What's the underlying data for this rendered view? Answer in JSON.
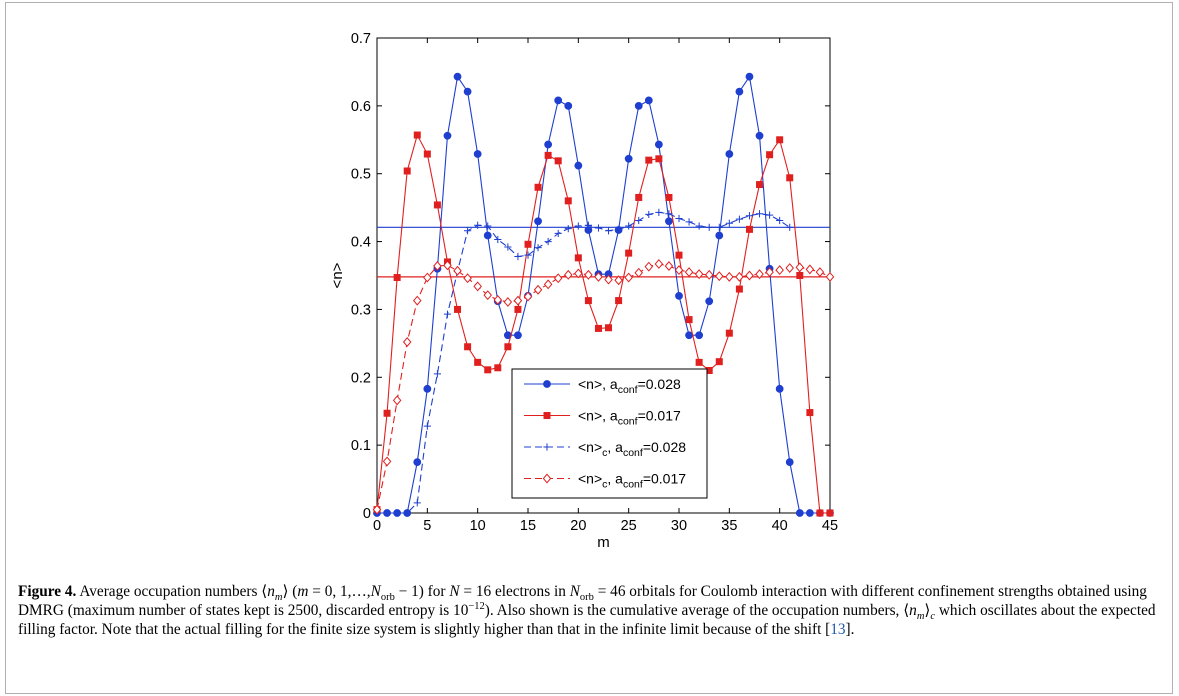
{
  "chart_data": {
    "type": "line",
    "xlabel": "m",
    "ylabel": "<n>",
    "xlim": [
      0,
      45
    ],
    "ylim": [
      0,
      0.7
    ],
    "xticks": [
      "0",
      "5",
      "10",
      "15",
      "20",
      "25",
      "30",
      "35",
      "40",
      "45"
    ],
    "yticks": [
      "0",
      "0.1",
      "0.2",
      "0.3",
      "0.4",
      "0.5",
      "0.6",
      "0.7"
    ],
    "legend_position": "lower-center",
    "horizontal_lines": [
      {
        "y": 0.421,
        "color": "#1e3fcf"
      },
      {
        "y": 0.348,
        "color": "#e0201f"
      }
    ],
    "series": [
      {
        "name": "<n>, a_conf=0.028",
        "legend_main": "<n>, a",
        "legend_sub": "conf",
        "legend_tail": "=0.028",
        "color": "#1e3fcf",
        "dash": "solid",
        "marker": "circle",
        "x": [
          0,
          1,
          2,
          3,
          4,
          5,
          6,
          7,
          8,
          9,
          10,
          11,
          12,
          13,
          14,
          15,
          16,
          17,
          18,
          19,
          20,
          21,
          22,
          23,
          24,
          25,
          26,
          27,
          28,
          29,
          30,
          31,
          32,
          33,
          34,
          35,
          36,
          37,
          38,
          39,
          40,
          41,
          42,
          43,
          44,
          45
        ],
        "values": [
          0,
          0,
          0,
          0,
          0.075,
          0.183,
          0.36,
          0.556,
          0.643,
          0.621,
          0.529,
          0.409,
          0.312,
          0.262,
          0.262,
          0.32,
          0.43,
          0.543,
          0.608,
          0.6,
          0.512,
          0.417,
          0.352,
          0.352,
          0.417,
          0.522,
          0.6,
          0.608,
          0.543,
          0.43,
          0.32,
          0.262,
          0.262,
          0.312,
          0.409,
          0.529,
          0.621,
          0.643,
          0.556,
          0.36,
          0.183,
          0.075,
          0,
          0,
          0,
          0
        ]
      },
      {
        "name": "<n>, a_conf=0.017",
        "legend_main": "<n>, a",
        "legend_sub": "conf",
        "legend_tail": "=0.017",
        "color": "#e0201f",
        "dash": "solid",
        "marker": "square",
        "x": [
          0,
          1,
          2,
          3,
          4,
          5,
          6,
          7,
          8,
          9,
          10,
          11,
          12,
          13,
          14,
          15,
          16,
          17,
          18,
          19,
          20,
          21,
          22,
          23,
          24,
          25,
          26,
          27,
          28,
          29,
          30,
          31,
          32,
          33,
          34,
          35,
          36,
          37,
          38,
          39,
          40,
          41,
          42,
          43,
          44,
          45
        ],
        "values": [
          0.005,
          0.147,
          0.347,
          0.504,
          0.557,
          0.529,
          0.454,
          0.37,
          0.3,
          0.245,
          0.222,
          0.211,
          0.214,
          0.245,
          0.3,
          0.396,
          0.48,
          0.527,
          0.519,
          0.46,
          0.376,
          0.313,
          0.272,
          0.273,
          0.313,
          0.383,
          0.465,
          0.52,
          0.522,
          0.465,
          0.38,
          0.285,
          0.222,
          0.21,
          0.223,
          0.265,
          0.33,
          0.418,
          0.484,
          0.528,
          0.55,
          0.494,
          0.35,
          0.148,
          0,
          0
        ]
      },
      {
        "name": "<n>_c, a_conf=0.028",
        "legend_main": "<n>",
        "legend_sub": "c",
        "legend_mid": ", a",
        "legend_sub2": "conf",
        "legend_tail": "=0.028",
        "color": "#1e3fcf",
        "dash": "dashed",
        "marker": "plus",
        "x": [
          0,
          1,
          2,
          3,
          4,
          5,
          6,
          7,
          8,
          9,
          10,
          11,
          12,
          13,
          14,
          15,
          16,
          17,
          18,
          19,
          20,
          21,
          22,
          23,
          24,
          25,
          26,
          27,
          28,
          29,
          30,
          31,
          32,
          33,
          34,
          35,
          36,
          37,
          38,
          39,
          40,
          41
        ],
        "values": [
          0,
          0,
          0,
          0,
          0.015,
          0.128,
          0.205,
          0.293,
          0.356,
          0.416,
          0.424,
          0.423,
          0.403,
          0.392,
          0.378,
          0.38,
          0.391,
          0.4,
          0.412,
          0.419,
          0.423,
          0.424,
          0.42,
          0.416,
          0.418,
          0.423,
          0.431,
          0.44,
          0.443,
          0.441,
          0.434,
          0.429,
          0.423,
          0.421,
          0.421,
          0.427,
          0.433,
          0.438,
          0.441,
          0.439,
          0.431,
          0.421
        ]
      },
      {
        "name": "<n>_c, a_conf=0.017",
        "legend_main": "<n>",
        "legend_sub": "c",
        "legend_mid": ", a",
        "legend_sub2": "conf",
        "legend_tail": "=0.017",
        "color": "#e0201f",
        "dash": "dashed",
        "marker": "diamond",
        "x": [
          0,
          1,
          2,
          3,
          4,
          5,
          6,
          7,
          8,
          9,
          10,
          11,
          12,
          13,
          14,
          15,
          16,
          17,
          18,
          19,
          20,
          21,
          22,
          23,
          24,
          25,
          26,
          27,
          28,
          29,
          30,
          31,
          32,
          33,
          34,
          35,
          36,
          37,
          38,
          39,
          40,
          41,
          42,
          43,
          44,
          45
        ],
        "values": [
          0.005,
          0.076,
          0.166,
          0.252,
          0.313,
          0.347,
          0.364,
          0.365,
          0.357,
          0.346,
          0.334,
          0.321,
          0.314,
          0.311,
          0.313,
          0.319,
          0.329,
          0.337,
          0.346,
          0.351,
          0.353,
          0.351,
          0.348,
          0.344,
          0.343,
          0.347,
          0.354,
          0.363,
          0.367,
          0.364,
          0.358,
          0.355,
          0.352,
          0.351,
          0.349,
          0.348,
          0.348,
          0.35,
          0.352,
          0.355,
          0.358,
          0.361,
          0.362,
          0.359,
          0.355,
          0.348
        ]
      }
    ]
  },
  "caption": {
    "label": "Figure 4.",
    "parts": [
      {
        "t": " Average occupation numbers ⟨",
        "i": false
      },
      {
        "t": "n",
        "i": true
      },
      {
        "t": "m",
        "i": true,
        "sub": true
      },
      {
        "t": "⟩ (",
        "i": false
      },
      {
        "t": "m",
        "i": true
      },
      {
        "t": " = 0, 1,…,",
        "i": false
      },
      {
        "t": "N",
        "i": true
      },
      {
        "t": "orb",
        "i": false,
        "sub": true
      },
      {
        "t": " − 1) for ",
        "i": false
      },
      {
        "t": "N",
        "i": true
      },
      {
        "t": " = 16 electrons in ",
        "i": false
      },
      {
        "t": "N",
        "i": true
      },
      {
        "t": "orb",
        "i": false,
        "sub": true
      },
      {
        "t": " = 46 orbitals for Coulomb interaction with different confinement strengths obtained using DMRG (maximum number of states kept is 2500, discarded entropy is 10",
        "i": false
      },
      {
        "t": "−12",
        "i": false,
        "sup": true
      },
      {
        "t": "). Also shown is the cumulative average of the occupation numbers, ⟨",
        "i": false
      },
      {
        "t": "n",
        "i": true
      },
      {
        "t": "m",
        "i": true,
        "sub": true
      },
      {
        "t": "⟩",
        "i": false
      },
      {
        "t": "c",
        "i": true,
        "sub": true
      },
      {
        "t": " which oscillates about the expected filling factor. Note that the actual filling for the finite size system is slightly higher than that in the infinite limit because of the shift [",
        "i": false
      },
      {
        "t": "13",
        "i": false,
        "ref": true
      },
      {
        "t": "].",
        "i": false
      }
    ]
  }
}
